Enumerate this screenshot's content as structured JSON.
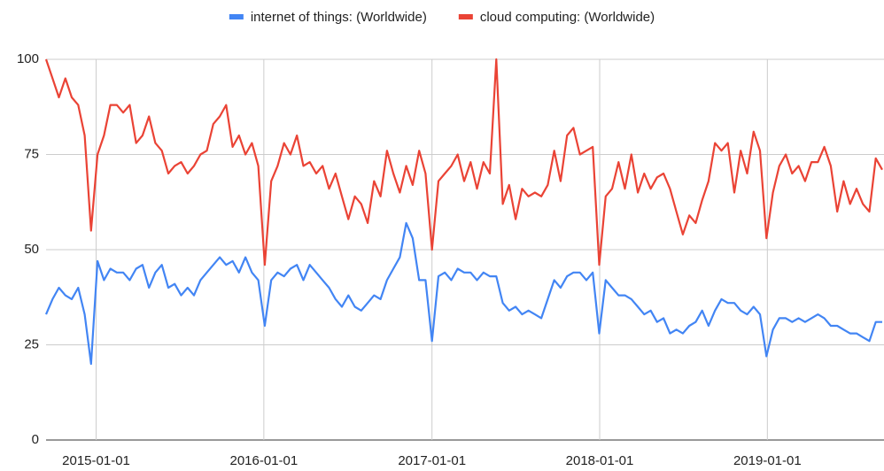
{
  "chart_data": {
    "type": "line",
    "x": [
      "2014-09-14",
      "2014-09-28",
      "2014-10-12",
      "2014-10-26",
      "2014-11-09",
      "2014-11-23",
      "2014-12-07",
      "2014-12-21",
      "2015-01-04",
      "2015-01-18",
      "2015-02-01",
      "2015-02-15",
      "2015-03-01",
      "2015-03-15",
      "2015-03-29",
      "2015-04-12",
      "2015-04-26",
      "2015-05-10",
      "2015-05-24",
      "2015-06-07",
      "2015-06-21",
      "2015-07-05",
      "2015-07-19",
      "2015-08-02",
      "2015-08-16",
      "2015-08-30",
      "2015-09-13",
      "2015-09-27",
      "2015-10-11",
      "2015-10-25",
      "2015-11-08",
      "2015-11-22",
      "2015-12-06",
      "2015-12-20",
      "2016-01-03",
      "2016-01-17",
      "2016-01-31",
      "2016-02-14",
      "2016-02-28",
      "2016-03-13",
      "2016-03-27",
      "2016-04-10",
      "2016-04-24",
      "2016-05-08",
      "2016-05-22",
      "2016-06-05",
      "2016-06-19",
      "2016-07-03",
      "2016-07-17",
      "2016-07-31",
      "2016-08-14",
      "2016-08-28",
      "2016-09-11",
      "2016-09-25",
      "2016-10-09",
      "2016-10-23",
      "2016-11-06",
      "2016-11-20",
      "2016-12-04",
      "2016-12-18",
      "2017-01-01",
      "2017-01-15",
      "2017-01-29",
      "2017-02-12",
      "2017-02-26",
      "2017-03-12",
      "2017-03-26",
      "2017-04-09",
      "2017-04-23",
      "2017-05-07",
      "2017-05-21",
      "2017-06-04",
      "2017-06-18",
      "2017-07-02",
      "2017-07-16",
      "2017-07-30",
      "2017-08-13",
      "2017-08-27",
      "2017-09-10",
      "2017-09-24",
      "2017-10-08",
      "2017-10-22",
      "2017-11-05",
      "2017-11-19",
      "2017-12-03",
      "2017-12-17",
      "2017-12-31",
      "2018-01-14",
      "2018-01-28",
      "2018-02-11",
      "2018-02-25",
      "2018-03-11",
      "2018-03-25",
      "2018-04-08",
      "2018-04-22",
      "2018-05-06",
      "2018-05-20",
      "2018-06-03",
      "2018-06-17",
      "2018-07-01",
      "2018-07-15",
      "2018-07-29",
      "2018-08-12",
      "2018-08-26",
      "2018-09-09",
      "2018-09-23",
      "2018-10-07",
      "2018-10-21",
      "2018-11-04",
      "2018-11-18",
      "2018-12-02",
      "2018-12-16",
      "2018-12-30",
      "2019-01-13",
      "2019-01-27",
      "2019-02-10",
      "2019-02-24",
      "2019-03-10",
      "2019-03-24",
      "2019-04-07",
      "2019-04-21",
      "2019-05-05",
      "2019-05-19",
      "2019-06-02",
      "2019-06-16",
      "2019-06-30",
      "2019-07-14",
      "2019-07-28",
      "2019-08-11",
      "2019-08-25",
      "2019-09-08"
    ],
    "series": [
      {
        "name": "internet of things: (Worldwide)",
        "color": "#4285f4",
        "values": [
          33,
          37,
          40,
          38,
          37,
          40,
          33,
          20,
          47,
          42,
          45,
          44,
          44,
          42,
          45,
          46,
          40,
          44,
          46,
          40,
          41,
          38,
          40,
          38,
          42,
          44,
          46,
          48,
          46,
          47,
          44,
          48,
          44,
          42,
          30,
          42,
          44,
          43,
          45,
          46,
          42,
          46,
          44,
          42,
          40,
          37,
          35,
          38,
          35,
          34,
          36,
          38,
          37,
          42,
          45,
          48,
          57,
          53,
          42,
          42,
          26,
          43,
          44,
          42,
          45,
          44,
          44,
          42,
          44,
          43,
          43,
          36,
          34,
          35,
          33,
          34,
          33,
          32,
          37,
          42,
          40,
          43,
          44,
          44,
          42,
          44,
          28,
          42,
          40,
          38,
          38,
          37,
          35,
          33,
          34,
          31,
          32,
          28,
          29,
          28,
          30,
          31,
          34,
          30,
          34,
          37,
          36,
          36,
          34,
          33,
          35,
          33,
          22,
          29,
          32,
          32,
          31,
          32,
          31,
          32,
          33,
          32,
          30,
          30,
          29,
          28,
          28,
          27,
          26,
          31,
          31
        ]
      },
      {
        "name": "cloud computing: (Worldwide)",
        "color": "#ea4335",
        "values": [
          100,
          95,
          90,
          95,
          90,
          88,
          80,
          55,
          75,
          80,
          88,
          88,
          86,
          88,
          78,
          80,
          85,
          78,
          76,
          70,
          72,
          73,
          70,
          72,
          75,
          76,
          83,
          85,
          88,
          77,
          80,
          75,
          78,
          72,
          46,
          68,
          72,
          78,
          75,
          80,
          72,
          73,
          70,
          72,
          66,
          70,
          64,
          58,
          64,
          62,
          57,
          68,
          64,
          76,
          70,
          65,
          72,
          67,
          76,
          70,
          50,
          68,
          70,
          72,
          75,
          68,
          73,
          66,
          73,
          70,
          100,
          62,
          67,
          58,
          66,
          64,
          65,
          64,
          67,
          76,
          68,
          80,
          82,
          75,
          76,
          77,
          46,
          64,
          66,
          73,
          66,
          75,
          65,
          70,
          66,
          69,
          70,
          66,
          60,
          54,
          59,
          57,
          63,
          68,
          78,
          76,
          78,
          65,
          76,
          70,
          81,
          76,
          53,
          65,
          72,
          75,
          70,
          72,
          68,
          73,
          73,
          77,
          72,
          60,
          68,
          62,
          66,
          62,
          60,
          74,
          71
        ]
      }
    ],
    "xlim": [
      "2014-09-14",
      "2019-09-08"
    ],
    "xticks": [
      "2015-01-01",
      "2016-01-01",
      "2017-01-01",
      "2018-01-01",
      "2019-01-01"
    ],
    "ylim": [
      0,
      100
    ],
    "yticks": [
      0,
      25,
      50,
      75,
      100
    ],
    "grid": true,
    "legend": "top"
  }
}
